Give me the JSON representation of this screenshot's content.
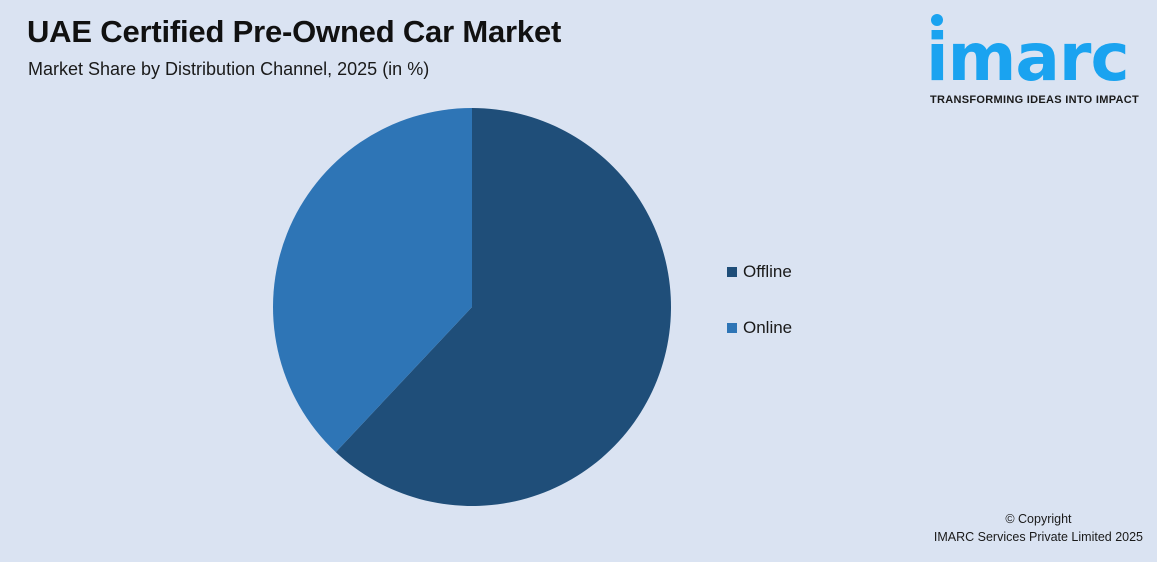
{
  "header": {
    "title": "UAE Certified Pre-Owned Car Market",
    "subtitle": "Market Share by Distribution Channel, 2025 (in %)"
  },
  "logo": {
    "wordmark": "imarc",
    "tagline": "TRANSFORMING IDEAS INTO IMPACT",
    "color": "#1aa3f0"
  },
  "legend": {
    "items": [
      {
        "label": "Offline",
        "color": "#1f4e79"
      },
      {
        "label": "Online",
        "color": "#2e75b6"
      }
    ]
  },
  "footer": {
    "copyright_line1": "© Copyright",
    "copyright_line2": "IMARC Services Private Limited 2025"
  },
  "chart_data": {
    "type": "pie",
    "title": "UAE Certified Pre-Owned Car Market",
    "subtitle": "Market Share by Distribution Channel, 2025 (in %)",
    "categories": [
      "Offline",
      "Online"
    ],
    "values": [
      62,
      38
    ],
    "colors": [
      "#1f4e79",
      "#2e75b6"
    ],
    "start_angle": "12 o'clock, clockwise",
    "legend_position": "right",
    "data_labels": false
  }
}
